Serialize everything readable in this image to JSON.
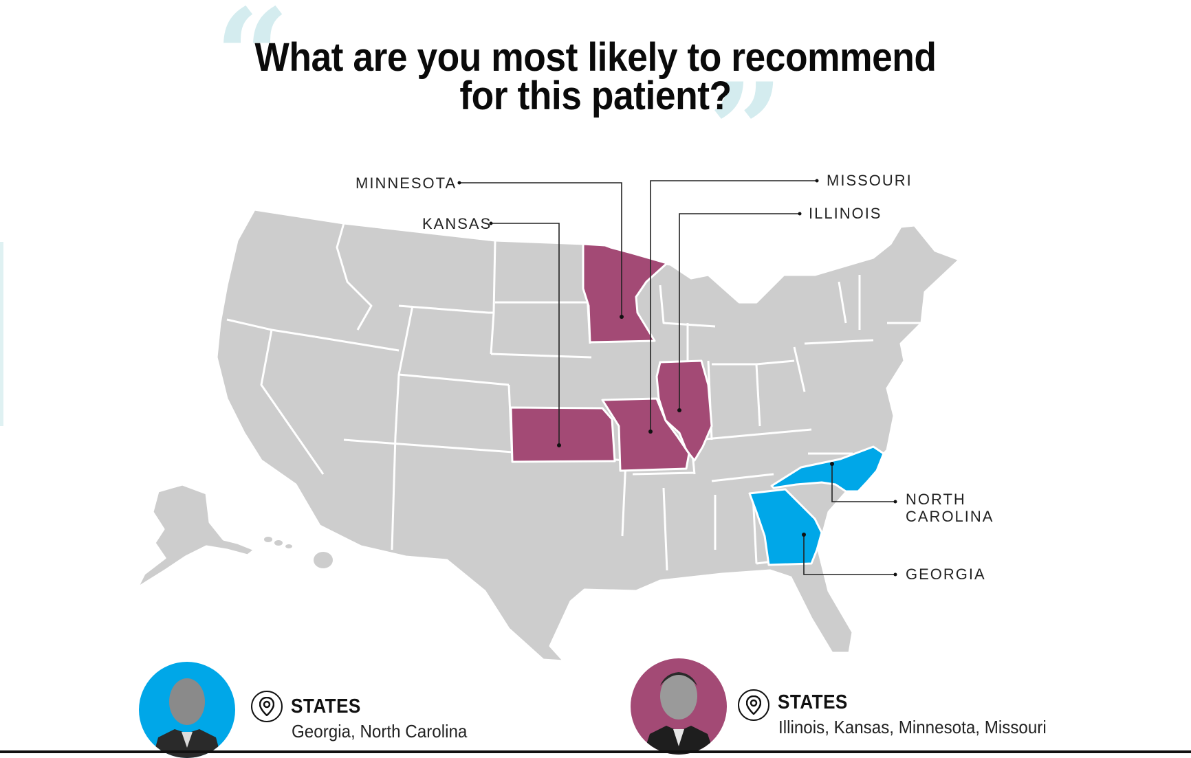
{
  "title_line1": "What are you most likely to recommend",
  "title_line2": "for this patient?",
  "quote_open": "“",
  "quote_close": "”",
  "colors": {
    "background": "#ffffff",
    "state_default": "#cdcdcd",
    "state_border": "#ffffff",
    "highlight_group_a": "#00a7e8",
    "highlight_group_b": "#a34a75",
    "quote_marks": "#d4ecef"
  },
  "labels": {
    "minnesota": "MINNESOTA",
    "missouri": "MISSOURI",
    "kansas": "KANSAS",
    "illinois": "ILLINOIS",
    "north_carolina_line1": "NORTH",
    "north_carolina_line2": "CAROLINA",
    "georgia": "GEORGIA"
  },
  "highlighted_states": [
    {
      "state": "Minnesota",
      "group": "expert_2"
    },
    {
      "state": "Missouri",
      "group": "expert_2"
    },
    {
      "state": "Kansas",
      "group": "expert_2"
    },
    {
      "state": "Illinois",
      "group": "expert_2"
    },
    {
      "state": "North Carolina",
      "group": "expert_1"
    },
    {
      "state": "Georgia",
      "group": "expert_1"
    }
  ],
  "experts": [
    {
      "heading": "STATES",
      "states": "Georgia, North Carolina",
      "avatar_color": "#00a7e8",
      "pin_icon": "location-pin-icon"
    },
    {
      "heading": "STATES",
      "states": "Illinois, Kansas, Minnesota, Missouri",
      "avatar_color": "#a34a75",
      "pin_icon": "location-pin-icon"
    }
  ]
}
